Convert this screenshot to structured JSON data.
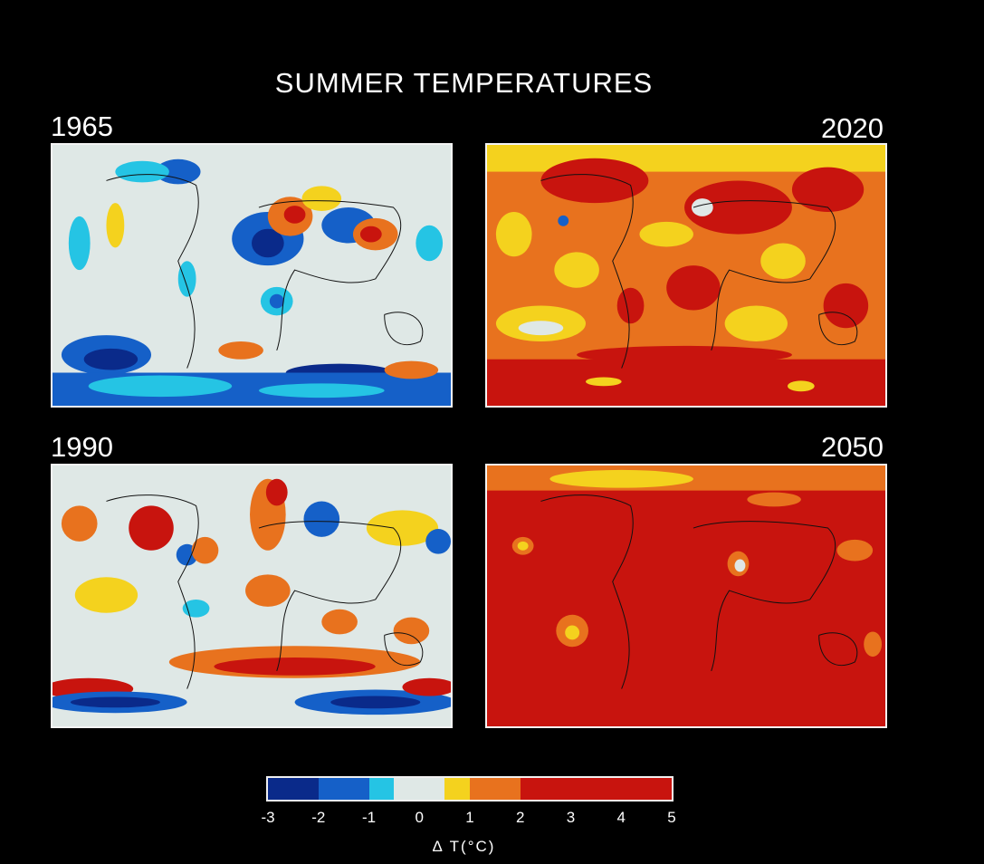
{
  "title": "SUMMER TEMPERATURES",
  "panels": [
    {
      "year": "1965",
      "theme": "mixed-cool"
    },
    {
      "year": "2020",
      "theme": "warm"
    },
    {
      "year": "1990",
      "theme": "mixed-warm"
    },
    {
      "year": "2050",
      "theme": "hot"
    }
  ],
  "legend": {
    "title": "Δ T(°C)",
    "ticks": [
      "-3",
      "-2",
      "-1",
      "0",
      "1",
      "2",
      "3",
      "4",
      "5"
    ],
    "bins": [
      {
        "from": -3,
        "to": -2,
        "color": "#0a2a8a"
      },
      {
        "from": -2,
        "to": -1,
        "color": "#1560c8"
      },
      {
        "from": -1,
        "to": -0.5,
        "color": "#25c4e4"
      },
      {
        "from": -0.5,
        "to": 0.5,
        "color": "#dfe8e6"
      },
      {
        "from": 0.5,
        "to": 1,
        "color": "#f4d21e"
      },
      {
        "from": 1,
        "to": 2,
        "color": "#e8721e"
      },
      {
        "from": 2,
        "to": 5,
        "color": "#c8140e"
      }
    ]
  }
}
